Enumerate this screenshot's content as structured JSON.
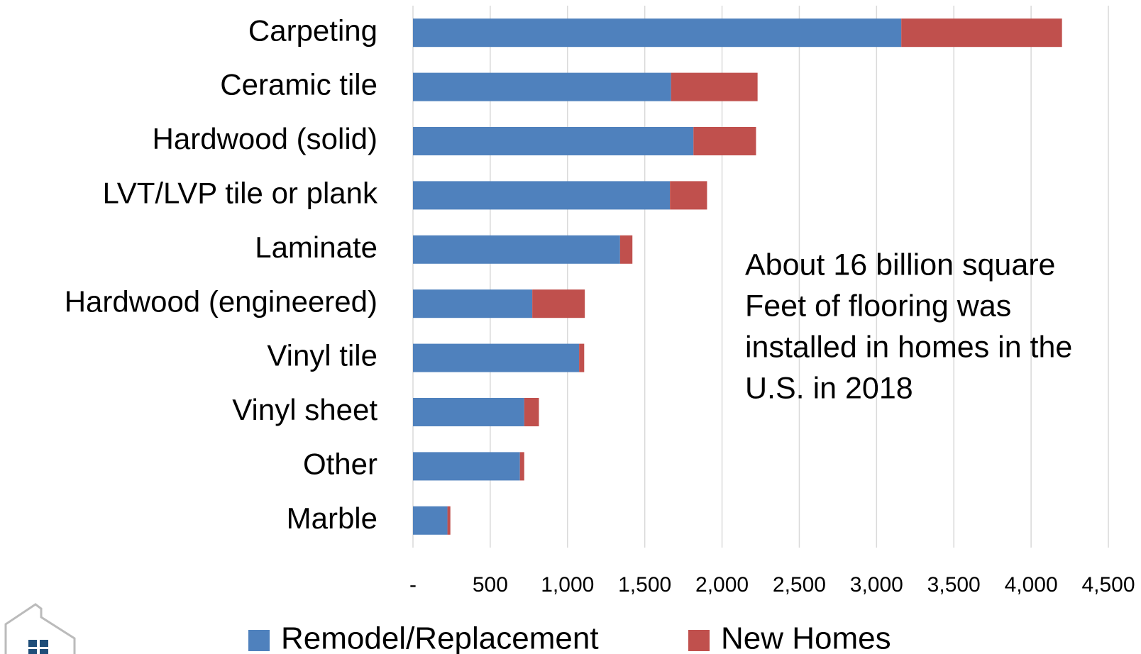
{
  "chart_data": {
    "type": "stacked_barh",
    "categories": [
      "Carpeting",
      "Ceramic tile",
      "Hardwood (solid)",
      "LVT/LVP tile or plank",
      "Laminate",
      "Hardwood (engineered)",
      "Vinyl tile",
      "Vinyl sheet",
      "Other",
      "Marble"
    ],
    "series": [
      {
        "name": "Remodel/Replacement",
        "color": "#4f81bd",
        "values": [
          3160,
          1670,
          1815,
          1663,
          1340,
          772,
          1075,
          720,
          692,
          223
        ]
      },
      {
        "name": "New Homes",
        "color": "#c0504d",
        "values": [
          1040,
          560,
          405,
          240,
          80,
          340,
          33,
          95,
          28,
          19
        ]
      }
    ],
    "xlim": [
      0,
      4500
    ],
    "xticks": [
      {
        "value": 0,
        "label": "-"
      },
      500,
      {
        "value": 1000,
        "label": "1,000"
      },
      {
        "value": 1500,
        "label": "1,500"
      },
      {
        "value": 2000,
        "label": "2,000"
      },
      {
        "value": 2500,
        "label": "2,500"
      },
      {
        "value": 3000,
        "label": "3,000"
      },
      {
        "value": 3500,
        "label": "3,500"
      },
      {
        "value": 4000,
        "label": "4,000"
      },
      {
        "value": 4500,
        "label": "4,500"
      }
    ],
    "grid": true,
    "legend": "bottom",
    "annotation": [
      "About 16 billion square",
      "Feet of flooring was",
      "installed in homes in the",
      "U.S. in 2018"
    ]
  }
}
